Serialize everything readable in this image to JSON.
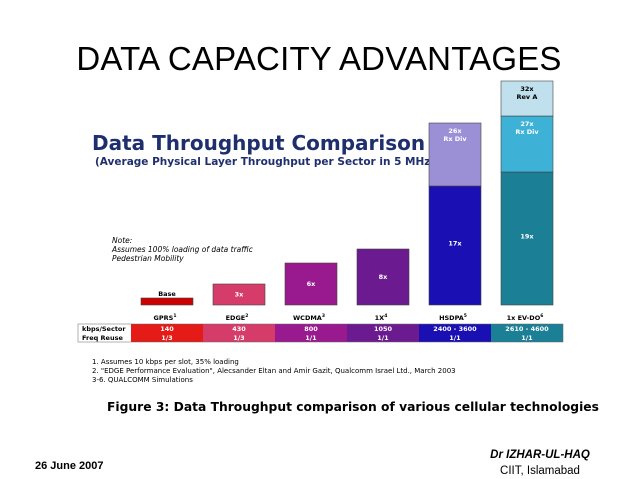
{
  "slide": {
    "title": "DATA CAPACITY ADVANTAGES",
    "date": "26 June 2007",
    "author_name": "Dr IZHAR-UL-HAQ",
    "author_affiliation": "CIIT, Islamabad"
  },
  "figure": {
    "note_lines": [
      "Note:",
      "Assumes 100% loading of data traffic",
      "Pedestrian Mobility"
    ],
    "footnotes": [
      "1. Assumes 10 kbps per slot, 35% loading",
      "2. \"EDGE Performance Evaluation\", Alecsander Eltan and Amir Gazit, Qualcomm Israel Ltd., March 2003",
      "3-6. QUALCOMM Simulations"
    ],
    "caption": "Figure 3: Data Throughput comparison of various cellular technologies"
  },
  "chart_data": {
    "type": "bar",
    "title": "Data Throughput Comparison",
    "subtitle": "(Average Physical Layer Throughput per Sector in 5 MHz)",
    "categories": [
      "GPRS",
      "EDGE",
      "WCDMA",
      "1X",
      "HSDPA",
      "1x EV-DO"
    ],
    "category_superscripts": [
      "1",
      "2",
      "3",
      "4",
      "5",
      "6"
    ],
    "baseline_label": "Base",
    "row_headers": [
      "kbps/Sector",
      "Freq Reuse"
    ],
    "kbps_per_sector": [
      "140",
      "430",
      "800",
      "1050",
      "2400 - 3600",
      "2610 - 4600"
    ],
    "freq_reuse": [
      "1/3",
      "1/3",
      "1/1",
      "1/1",
      "1/1",
      "1/1"
    ],
    "segments": [
      [
        {
          "value": 1,
          "label": "Base",
          "color": "#cc0000"
        }
      ],
      [
        {
          "value": 3,
          "label": "3x",
          "color": "#d63c6a"
        }
      ],
      [
        {
          "value": 6,
          "label": "6x",
          "color": "#99198f"
        }
      ],
      [
        {
          "value": 8,
          "label": "8x",
          "color": "#6b1b8f"
        }
      ],
      [
        {
          "value": 17,
          "label": "17x",
          "color": "#1a0fb3"
        },
        {
          "value": 9,
          "label": "26x\nRx Div",
          "color": "#9b8fd6"
        }
      ],
      [
        {
          "value": 19,
          "label": "19x",
          "color": "#1b7f96"
        },
        {
          "value": 8,
          "label": "27x\nRx Div",
          "color": "#3db2d6"
        },
        {
          "value": 5,
          "label": "32x\nRev A",
          "color": "#bfe0ec"
        }
      ]
    ],
    "table_colors": [
      "#e41b17",
      "#d63c6a",
      "#99198f",
      "#6b1b8f",
      "#1a0fb3",
      "#1b7f96"
    ],
    "ylim": [
      0,
      32
    ],
    "grid": false
  }
}
